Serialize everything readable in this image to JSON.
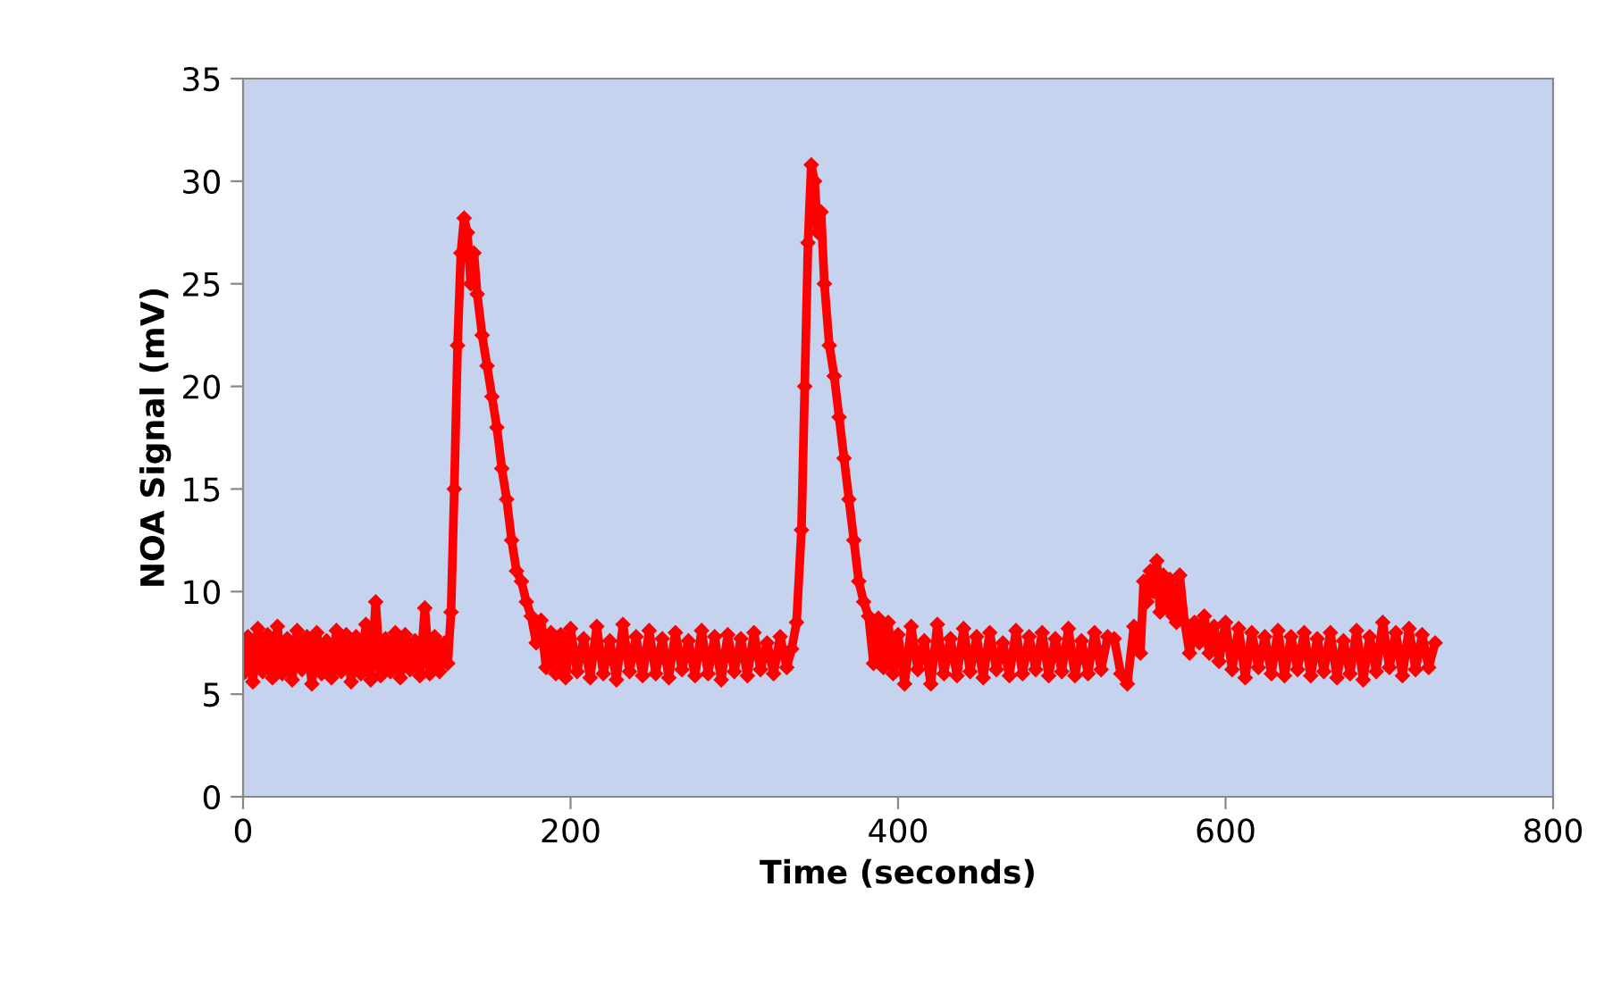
{
  "chart_data": {
    "type": "line",
    "xlabel": "Time (seconds)",
    "ylabel": "NOA Signal (mV)",
    "xlim": [
      0,
      800
    ],
    "xticks": [
      0,
      200,
      400,
      600,
      800
    ],
    "ylim": [
      0,
      35
    ],
    "yticks": [
      0,
      5,
      10,
      15,
      20,
      25,
      30,
      35
    ],
    "grid": false,
    "legend": false,
    "marker": "diamond",
    "line_style": "solid",
    "series": [
      {
        "color": "#ff0000",
        "x": [
          0,
          3,
          6,
          9,
          12,
          15,
          18,
          21,
          24,
          27,
          30,
          33,
          36,
          39,
          42,
          45,
          48,
          51,
          54,
          57,
          60,
          63,
          66,
          69,
          72,
          75,
          78,
          81,
          84,
          87,
          90,
          93,
          96,
          99,
          102,
          105,
          108,
          111,
          114,
          117,
          120,
          123,
          125,
          127,
          129,
          131,
          133,
          135,
          137,
          139,
          141,
          143,
          146,
          149,
          152,
          155,
          158,
          161,
          164,
          167,
          170,
          173,
          176,
          179,
          182,
          185,
          188,
          191,
          194,
          197,
          200,
          204,
          208,
          212,
          216,
          220,
          224,
          228,
          232,
          236,
          240,
          244,
          248,
          252,
          256,
          260,
          264,
          268,
          272,
          276,
          280,
          284,
          288,
          292,
          296,
          300,
          304,
          308,
          312,
          316,
          320,
          324,
          328,
          332,
          335,
          338,
          341,
          343,
          345,
          347,
          349,
          351,
          353,
          355,
          358,
          361,
          364,
          367,
          370,
          373,
          376,
          379,
          382,
          385,
          388,
          391,
          394,
          397,
          400,
          404,
          408,
          412,
          416,
          420,
          424,
          428,
          432,
          436,
          440,
          444,
          448,
          452,
          456,
          460,
          464,
          468,
          472,
          476,
          480,
          484,
          488,
          492,
          496,
          500,
          504,
          508,
          512,
          516,
          520,
          524,
          528,
          532,
          536,
          540,
          544,
          548,
          550,
          552,
          554,
          556,
          558,
          560,
          562,
          564,
          566,
          568,
          570,
          572,
          575,
          578,
          581,
          584,
          587,
          590,
          593,
          596,
          600,
          604,
          608,
          612,
          616,
          620,
          624,
          628,
          632,
          636,
          640,
          644,
          648,
          652,
          656,
          660,
          664,
          668,
          672,
          676,
          680,
          684,
          688,
          692,
          696,
          700,
          704,
          708,
          712,
          716,
          720,
          724,
          728
        ],
        "values": [
          6.0,
          7.8,
          5.6,
          8.2,
          6.1,
          7.9,
          5.8,
          8.3,
          6.0,
          7.7,
          5.7,
          8.1,
          6.2,
          7.8,
          5.5,
          8.0,
          6.0,
          7.6,
          5.8,
          8.1,
          6.1,
          7.9,
          5.6,
          7.8,
          6.0,
          8.4,
          5.7,
          9.5,
          5.9,
          7.7,
          6.1,
          8.0,
          5.8,
          7.9,
          6.2,
          7.6,
          5.9,
          9.2,
          6.0,
          7.8,
          6.1,
          7.5,
          6.5,
          9.0,
          15.0,
          22.0,
          26.5,
          28.2,
          27.5,
          25.0,
          26.5,
          24.5,
          22.5,
          21.0,
          19.5,
          18.0,
          16.0,
          14.5,
          12.5,
          11.0,
          10.5,
          9.5,
          8.8,
          7.5,
          8.6,
          6.3,
          8.0,
          6.0,
          7.9,
          5.8,
          8.2,
          6.1,
          7.7,
          5.8,
          8.3,
          6.0,
          7.6,
          5.7,
          8.4,
          6.1,
          7.8,
          5.9,
          8.1,
          6.0,
          7.7,
          5.8,
          8.0,
          6.2,
          7.6,
          5.9,
          8.1,
          6.0,
          7.8,
          5.7,
          7.9,
          6.1,
          7.7,
          5.9,
          8.0,
          6.2,
          7.5,
          6.0,
          7.8,
          6.3,
          7.2,
          8.5,
          13.0,
          20.0,
          27.0,
          30.8,
          30.0,
          27.5,
          28.5,
          25.0,
          22.0,
          20.5,
          18.5,
          16.5,
          14.5,
          12.5,
          10.5,
          9.5,
          8.8,
          6.5,
          8.7,
          6.3,
          8.5,
          6.0,
          7.9,
          5.5,
          8.3,
          6.2,
          7.6,
          5.5,
          8.4,
          6.0,
          7.7,
          5.9,
          8.2,
          6.1,
          7.8,
          5.8,
          8.0,
          6.2,
          7.5,
          5.9,
          8.1,
          6.0,
          7.8,
          6.2,
          8.0,
          5.9,
          7.7,
          6.1,
          8.2,
          5.9,
          7.6,
          6.0,
          8.0,
          6.2,
          7.8,
          7.7,
          6.0,
          5.5,
          8.3,
          7.0,
          10.5,
          9.5,
          11.0,
          10.0,
          11.5,
          9.0,
          10.8,
          9.2,
          10.6,
          8.8,
          8.5,
          10.8,
          8.5,
          7.0,
          8.5,
          7.5,
          8.8,
          7.0,
          8.3,
          6.6,
          8.5,
          6.2,
          8.2,
          5.8,
          8.0,
          6.3,
          7.8,
          6.0,
          8.1,
          5.9,
          7.8,
          6.2,
          8.0,
          5.9,
          7.7,
          6.1,
          8.0,
          5.8,
          7.6,
          6.0,
          8.1,
          5.7,
          7.8,
          6.1,
          8.5,
          6.3,
          8.0,
          5.9,
          8.2,
          6.2,
          7.9,
          6.3,
          7.5
        ]
      }
    ]
  }
}
